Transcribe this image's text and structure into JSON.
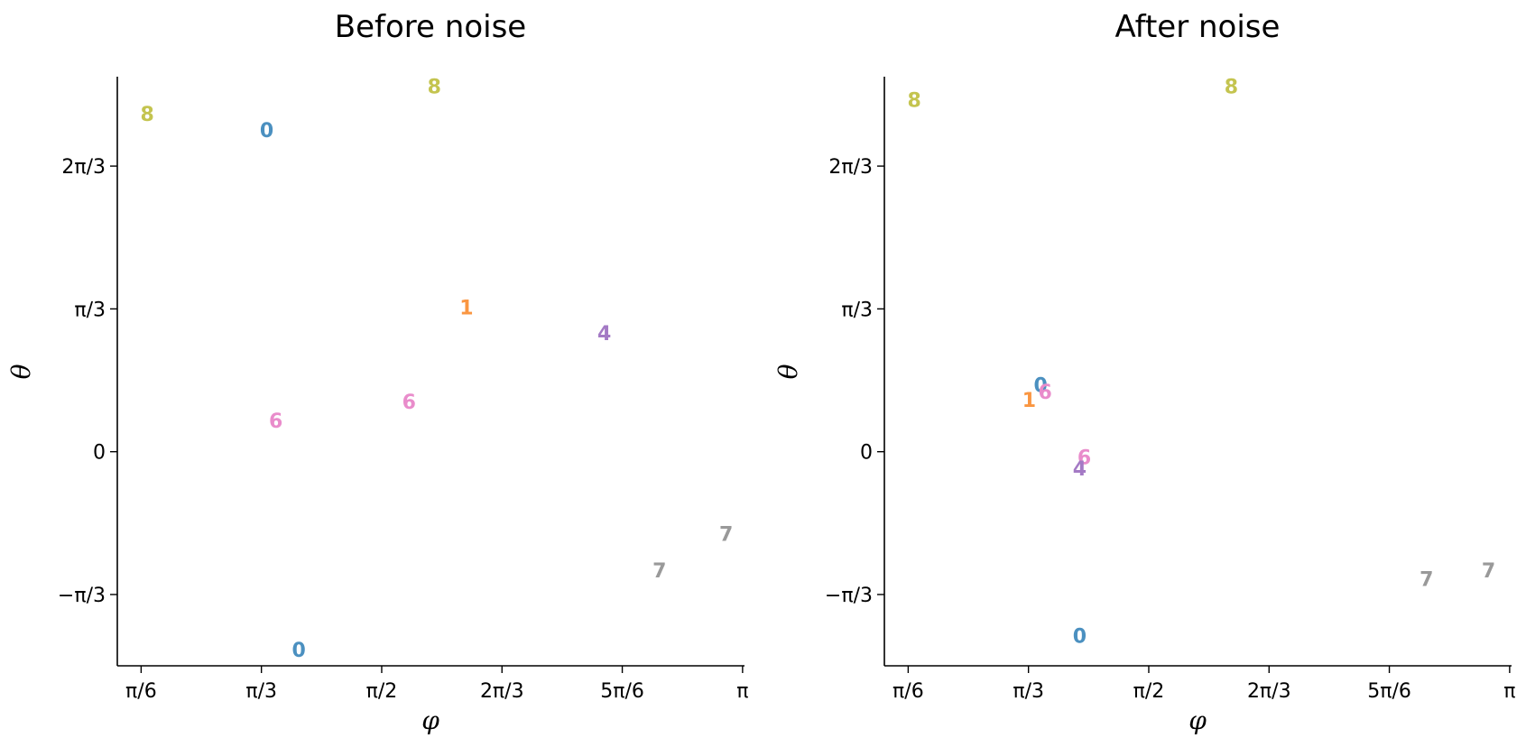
{
  "chart_data": [
    {
      "type": "scatter",
      "title": "Before noise",
      "xlabel": "φ",
      "ylabel": "θ",
      "xlim": [
        0.42,
        3.15
      ],
      "ylim": [
        -1.57,
        2.75
      ],
      "xticks": [
        {
          "value": 0.5236,
          "label": "π/6"
        },
        {
          "value": 1.0472,
          "label": "π/3"
        },
        {
          "value": 1.5708,
          "label": "π/2"
        },
        {
          "value": 2.0944,
          "label": "2π/3"
        },
        {
          "value": 2.618,
          "label": "5π/6"
        },
        {
          "value": 3.1416,
          "label": "π"
        }
      ],
      "yticks": [
        {
          "value": 2.0944,
          "label": "2π/3"
        },
        {
          "value": 1.0472,
          "label": "π/3"
        },
        {
          "value": 0,
          "label": "0"
        },
        {
          "value": -1.0472,
          "label": "−π/3"
        }
      ],
      "points": [
        {
          "label": "8",
          "x": 0.55,
          "y": 2.48
        },
        {
          "label": "0",
          "x": 1.07,
          "y": 2.36
        },
        {
          "label": "8",
          "x": 1.8,
          "y": 2.68
        },
        {
          "label": "1",
          "x": 1.94,
          "y": 1.06
        },
        {
          "label": "4",
          "x": 2.54,
          "y": 0.87
        },
        {
          "label": "6",
          "x": 1.11,
          "y": 0.23
        },
        {
          "label": "6",
          "x": 1.69,
          "y": 0.37
        },
        {
          "label": "7",
          "x": 3.07,
          "y": -0.6
        },
        {
          "label": "7",
          "x": 2.78,
          "y": -0.87
        },
        {
          "label": "0",
          "x": 1.21,
          "y": -1.45
        }
      ],
      "grid": false,
      "legend": "none"
    },
    {
      "type": "scatter",
      "title": "After noise",
      "xlabel": "φ",
      "ylabel": "θ",
      "xlim": [
        0.42,
        3.15
      ],
      "ylim": [
        -1.57,
        2.75
      ],
      "xticks": [
        {
          "value": 0.5236,
          "label": "π/6"
        },
        {
          "value": 1.0472,
          "label": "π/3"
        },
        {
          "value": 1.5708,
          "label": "π/2"
        },
        {
          "value": 2.0944,
          "label": "2π/3"
        },
        {
          "value": 2.618,
          "label": "5π/6"
        },
        {
          "value": 3.1416,
          "label": "π"
        }
      ],
      "yticks": [
        {
          "value": 2.0944,
          "label": "2π/3"
        },
        {
          "value": 1.0472,
          "label": "π/3"
        },
        {
          "value": 0,
          "label": "0"
        },
        {
          "value": -1.0472,
          "label": "−π/3"
        }
      ],
      "points": [
        {
          "label": "8",
          "x": 0.55,
          "y": 2.58
        },
        {
          "label": "8",
          "x": 1.93,
          "y": 2.68
        },
        {
          "label": "0",
          "x": 1.1,
          "y": 0.49
        },
        {
          "label": "1",
          "x": 1.05,
          "y": 0.38
        },
        {
          "label": "6",
          "x": 1.12,
          "y": 0.44
        },
        {
          "label": "6",
          "x": 1.29,
          "y": -0.04
        },
        {
          "label": "4",
          "x": 1.27,
          "y": -0.12
        },
        {
          "label": "0",
          "x": 1.27,
          "y": -1.35
        },
        {
          "label": "7",
          "x": 2.78,
          "y": -0.93
        },
        {
          "label": "7",
          "x": 3.05,
          "y": -0.87
        }
      ],
      "grid": false,
      "legend": "none"
    }
  ],
  "colors": {
    "0": "#4b90c0",
    "1": "#fa9641",
    "4": "#a47ac5",
    "6": "#e98ccb",
    "7": "#999999",
    "8": "#c4c44f"
  }
}
